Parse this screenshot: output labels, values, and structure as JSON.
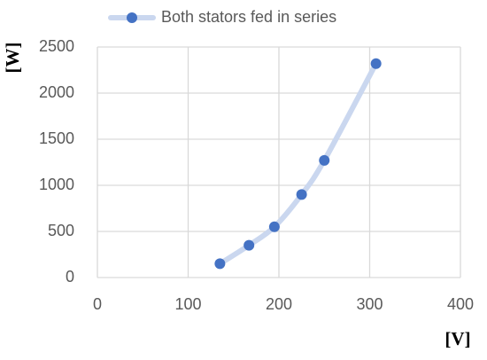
{
  "chart_data": {
    "type": "scatter",
    "title": null,
    "x_label": "[V]",
    "y_label": "[W]",
    "series": [
      {
        "name": "Both stators fed in series",
        "color": "#4472c4",
        "line_color": "#cad7ef",
        "x": [
          135,
          167,
          195,
          225,
          250,
          307
        ],
        "values": [
          150,
          350,
          550,
          900,
          1270,
          2320
        ]
      }
    ],
    "xlim": [
      0,
      400
    ],
    "xticks": [
      0,
      100,
      200,
      300,
      400
    ],
    "ylim": [
      0,
      2500
    ],
    "yticks": [
      0,
      500,
      1000,
      1500,
      2000,
      2500
    ],
    "grid": true,
    "legend": "top"
  }
}
